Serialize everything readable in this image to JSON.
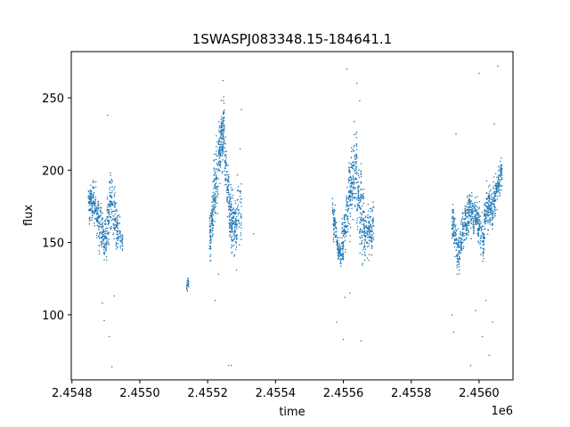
{
  "chart_data": {
    "type": "scatter",
    "title": "1SWASPJ083348.15-184641.1",
    "xlabel": "time",
    "ylabel": "flux",
    "offset_label": "1e6",
    "xlim": [
      2454798,
      2456100
    ],
    "ylim": [
      55,
      282
    ],
    "x_ticks": [
      2454800,
      2455000,
      2455200,
      2455400,
      2455600,
      2455800,
      2456000
    ],
    "x_tick_labels": [
      "2.4548",
      "2.4550",
      "2.4552",
      "2.4554",
      "2.4556",
      "2.4558",
      "2.4560"
    ],
    "y_ticks": [
      100,
      150,
      200,
      250
    ],
    "y_tick_labels": [
      "100",
      "150",
      "200",
      "250"
    ],
    "grid": false,
    "marker_color": "#1f77b4",
    "clusters": [
      {
        "x": [
          2454848,
          2454862
        ],
        "ymid": [
          175,
          180
        ],
        "amp": 8,
        "n": 90
      },
      {
        "x": [
          2454862,
          2454880
        ],
        "ymid": [
          180,
          165
        ],
        "amp": 10,
        "n": 100
      },
      {
        "x": [
          2454880,
          2454900
        ],
        "ymid": [
          165,
          150
        ],
        "amp": 12,
        "n": 110
      },
      {
        "x": [
          2454900,
          2454915
        ],
        "ymid": [
          150,
          185
        ],
        "amp": 14,
        "n": 100
      },
      {
        "x": [
          2454915,
          2454935
        ],
        "ymid": [
          180,
          155
        ],
        "amp": 14,
        "n": 110
      },
      {
        "x": [
          2454935,
          2454950
        ],
        "ymid": [
          158,
          150
        ],
        "amp": 8,
        "n": 40
      },
      {
        "x": [
          2455138,
          2455145
        ],
        "ymid": [
          121,
          121
        ],
        "amp": 3,
        "n": 25
      },
      {
        "x": [
          2455205,
          2455215
        ],
        "ymid": [
          150,
          170
        ],
        "amp": 12,
        "n": 80
      },
      {
        "x": [
          2455215,
          2455235
        ],
        "ymid": [
          175,
          210
        ],
        "amp": 16,
        "n": 140
      },
      {
        "x": [
          2455235,
          2455250
        ],
        "ymid": [
          215,
          230
        ],
        "amp": 15,
        "n": 140
      },
      {
        "x": [
          2455250,
          2455265
        ],
        "ymid": [
          210,
          175
        ],
        "amp": 14,
        "n": 100
      },
      {
        "x": [
          2455265,
          2455285
        ],
        "ymid": [
          170,
          158
        ],
        "amp": 14,
        "n": 150
      },
      {
        "x": [
          2455285,
          2455300
        ],
        "ymid": [
          165,
          180
        ],
        "amp": 18,
        "n": 60
      },
      {
        "x": [
          2455568,
          2455580
        ],
        "ymid": [
          170,
          158
        ],
        "amp": 8,
        "n": 70
      },
      {
        "x": [
          2455580,
          2455595
        ],
        "ymid": [
          148,
          142
        ],
        "amp": 5,
        "n": 80
      },
      {
        "x": [
          2455595,
          2455615
        ],
        "ymid": [
          145,
          175
        ],
        "amp": 12,
        "n": 120
      },
      {
        "x": [
          2455615,
          2455640
        ],
        "ymid": [
          180,
          205
        ],
        "amp": 18,
        "n": 170
      },
      {
        "x": [
          2455640,
          2455665
        ],
        "ymid": [
          185,
          158
        ],
        "amp": 18,
        "n": 170
      },
      {
        "x": [
          2455665,
          2455690
        ],
        "ymid": [
          155,
          162
        ],
        "amp": 12,
        "n": 120
      },
      {
        "x": [
          2455920,
          2455935
        ],
        "ymid": [
          168,
          150
        ],
        "amp": 10,
        "n": 80
      },
      {
        "x": [
          2455935,
          2455955
        ],
        "ymid": [
          140,
          158
        ],
        "amp": 10,
        "n": 120
      },
      {
        "x": [
          2455955,
          2455975
        ],
        "ymid": [
          160,
          175
        ],
        "amp": 10,
        "n": 120
      },
      {
        "x": [
          2455975,
          2455995
        ],
        "ymid": [
          172,
          165
        ],
        "amp": 10,
        "n": 110
      },
      {
        "x": [
          2455995,
          2456015
        ],
        "ymid": [
          165,
          150
        ],
        "amp": 10,
        "n": 110
      },
      {
        "x": [
          2456015,
          2456035
        ],
        "ymid": [
          165,
          178
        ],
        "amp": 10,
        "n": 130
      },
      {
        "x": [
          2456035,
          2456050
        ],
        "ymid": [
          170,
          185
        ],
        "amp": 10,
        "n": 90
      },
      {
        "x": [
          2456050,
          2456068
        ],
        "ymid": [
          185,
          200
        ],
        "amp": 8,
        "n": 90
      }
    ],
    "outliers": [
      [
        2454905,
        238
      ],
      [
        2454890,
        108
      ],
      [
        2454895,
        96
      ],
      [
        2454910,
        85
      ],
      [
        2454925,
        113
      ],
      [
        2454918,
        64
      ],
      [
        2455245,
        262
      ],
      [
        2455232,
        128
      ],
      [
        2455222,
        110
      ],
      [
        2455270,
        65
      ],
      [
        2455262,
        65
      ],
      [
        2455300,
        242
      ],
      [
        2455335,
        156
      ],
      [
        2455610,
        270
      ],
      [
        2455640,
        260
      ],
      [
        2455648,
        248
      ],
      [
        2455600,
        83
      ],
      [
        2455652,
        82
      ],
      [
        2455605,
        112
      ],
      [
        2455580,
        95
      ],
      [
        2455620,
        115
      ],
      [
        2456000,
        267
      ],
      [
        2455932,
        225
      ],
      [
        2455920,
        100
      ],
      [
        2455925,
        88
      ],
      [
        2455990,
        103
      ],
      [
        2456010,
        85
      ],
      [
        2456030,
        72
      ],
      [
        2456055,
        272
      ],
      [
        2456045,
        232
      ],
      [
        2456040,
        95
      ],
      [
        2455975,
        65
      ],
      [
        2456020,
        110
      ]
    ]
  }
}
